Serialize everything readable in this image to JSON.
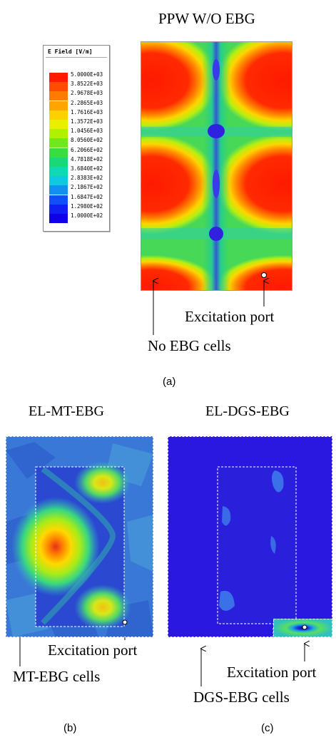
{
  "panel_a": {
    "title": "PPW W/O EBG",
    "legend": {
      "title": "E Field [V/m]",
      "ticks": [
        "5.0000E+03",
        "3.8522E+03",
        "2.9678E+03",
        "2.2865E+03",
        "1.7616E+03",
        "1.3572E+03",
        "1.0456E+03",
        "8.0560E+02",
        "6.2066E+02",
        "4.7818E+02",
        "3.6840E+02",
        "2.8383E+02",
        "2.1867E+02",
        "1.6847E+02",
        "1.2980E+02",
        "1.0000E+02"
      ],
      "colors": [
        "#ff1a00",
        "#ff4d00",
        "#ff7a00",
        "#ffa500",
        "#ffd000",
        "#e8f000",
        "#b0f000",
        "#70e81a",
        "#38de40",
        "#18d878",
        "#10d8b0",
        "#10c8e0",
        "#1090f0",
        "#1050f8",
        "#1020f0",
        "#1000e8"
      ]
    },
    "annotations": {
      "excitation_port": "Excitation port",
      "no_ebg": "No EBG cells"
    },
    "caption": "(a)"
  },
  "panel_b": {
    "title": "EL-MT-EBG",
    "annotations": {
      "excitation_port": "Excitation port",
      "cells": "MT-EBG cells"
    },
    "caption": "(b)"
  },
  "panel_c": {
    "title": "EL-DGS-EBG",
    "annotations": {
      "excitation_port": "Excitation port",
      "cells": "DGS-EBG cells"
    },
    "caption": "(c)"
  },
  "colors": {
    "field_high": "#ff1a00",
    "field_low": "#2a10e0",
    "ebg_boundary": "#ffffff"
  }
}
